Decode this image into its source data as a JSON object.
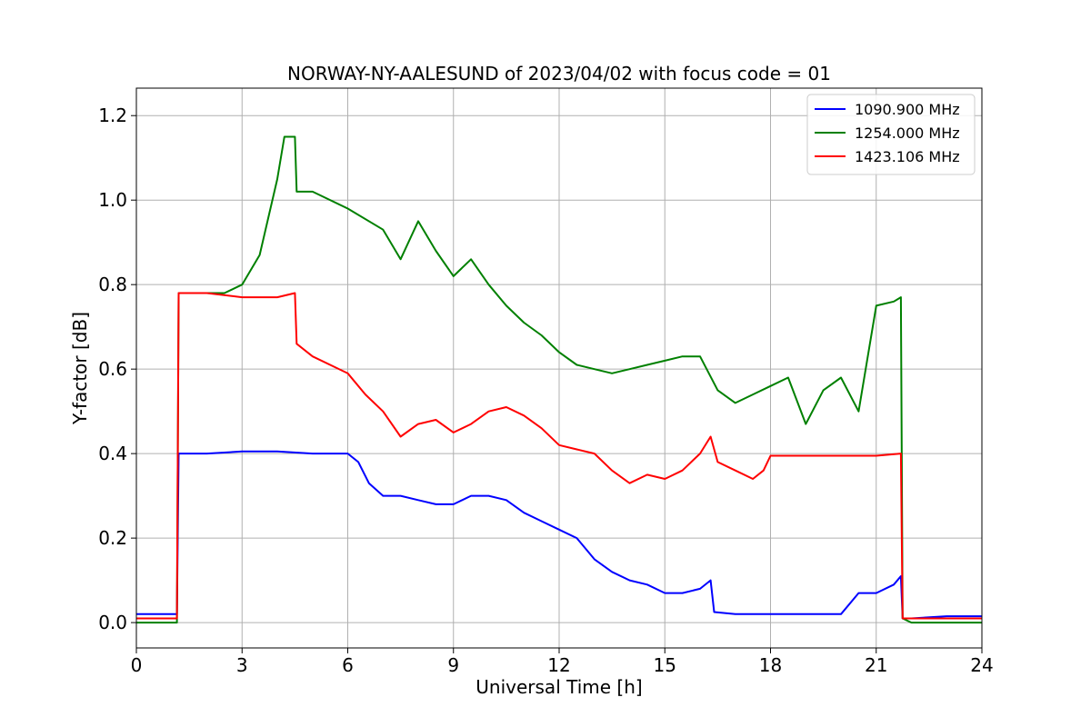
{
  "chart_data": {
    "type": "line",
    "title": "NORWAY-NY-AALESUND of 2023/04/02 with focus code = 01",
    "xlabel": "Universal Time [h]",
    "ylabel": "Y-factor [dB]",
    "xlim": [
      0,
      24
    ],
    "ylim": [
      -0.06,
      1.265
    ],
    "xticks": [
      0,
      3,
      6,
      9,
      12,
      15,
      18,
      21,
      24
    ],
    "yticks": [
      0.0,
      0.2,
      0.4,
      0.6,
      0.8,
      1.0,
      1.2
    ],
    "xtick_labels": [
      "0",
      "3",
      "6",
      "9",
      "12",
      "15",
      "18",
      "21",
      "24"
    ],
    "ytick_labels": [
      "0.0",
      "0.2",
      "0.4",
      "0.6",
      "0.8",
      "1.0",
      "1.2"
    ],
    "grid": true,
    "legend_position": "top-right",
    "series": [
      {
        "name": "1090.900 MHz",
        "color": "#0000ff",
        "x": [
          0,
          1.15,
          1.2,
          2.0,
          3.0,
          4.0,
          5.0,
          6.0,
          6.3,
          6.6,
          7.0,
          7.5,
          8.0,
          8.5,
          9.0,
          9.5,
          10.0,
          10.5,
          11.0,
          11.5,
          12.0,
          12.5,
          13.0,
          13.5,
          14.0,
          14.5,
          15.0,
          15.5,
          16.0,
          16.3,
          16.4,
          17.0,
          18.0,
          19.0,
          20.0,
          20.5,
          21.0,
          21.5,
          21.7,
          21.75,
          22.0,
          23.0,
          24.0
        ],
        "y": [
          0.02,
          0.02,
          0.4,
          0.4,
          0.405,
          0.405,
          0.4,
          0.4,
          0.38,
          0.33,
          0.3,
          0.3,
          0.29,
          0.28,
          0.28,
          0.3,
          0.3,
          0.29,
          0.26,
          0.24,
          0.22,
          0.2,
          0.15,
          0.12,
          0.1,
          0.09,
          0.07,
          0.07,
          0.08,
          0.1,
          0.025,
          0.02,
          0.02,
          0.02,
          0.02,
          0.07,
          0.07,
          0.09,
          0.11,
          0.01,
          0.01,
          0.015,
          0.015
        ]
      },
      {
        "name": "1254.000 MHz",
        "color": "#008000",
        "x": [
          0,
          1.15,
          1.2,
          2.0,
          2.5,
          3.0,
          3.5,
          4.0,
          4.2,
          4.5,
          4.55,
          5.0,
          6.0,
          7.0,
          7.5,
          8.0,
          8.5,
          9.0,
          9.5,
          10.0,
          10.5,
          11.0,
          11.5,
          12.0,
          12.5,
          13.0,
          13.5,
          14.0,
          14.5,
          15.0,
          15.5,
          16.0,
          16.5,
          17.0,
          17.5,
          18.0,
          18.5,
          19.0,
          19.5,
          20.0,
          20.5,
          21.0,
          21.5,
          21.7,
          21.75,
          22.0,
          23.0,
          24.0
        ],
        "y": [
          0.0,
          0.0,
          0.78,
          0.78,
          0.78,
          0.8,
          0.87,
          1.05,
          1.15,
          1.15,
          1.02,
          1.02,
          0.98,
          0.93,
          0.86,
          0.95,
          0.88,
          0.82,
          0.86,
          0.8,
          0.75,
          0.71,
          0.68,
          0.64,
          0.61,
          0.6,
          0.59,
          0.6,
          0.61,
          0.62,
          0.63,
          0.63,
          0.55,
          0.52,
          0.54,
          0.56,
          0.58,
          0.47,
          0.55,
          0.58,
          0.5,
          0.75,
          0.76,
          0.77,
          0.01,
          0.0,
          0.0,
          0.0
        ]
      },
      {
        "name": "1423.106 MHz",
        "color": "#ff0000",
        "x": [
          0,
          1.15,
          1.2,
          2.0,
          3.0,
          4.0,
          4.5,
          4.55,
          5.0,
          6.0,
          6.5,
          7.0,
          7.5,
          8.0,
          8.5,
          9.0,
          9.5,
          10.0,
          10.5,
          11.0,
          11.5,
          12.0,
          12.5,
          13.0,
          13.5,
          14.0,
          14.5,
          15.0,
          15.5,
          16.0,
          16.3,
          16.5,
          17.0,
          17.5,
          17.8,
          18.0,
          19.0,
          20.0,
          21.0,
          21.7,
          21.75,
          22.0,
          23.0,
          24.0
        ],
        "y": [
          0.01,
          0.01,
          0.78,
          0.78,
          0.77,
          0.77,
          0.78,
          0.66,
          0.63,
          0.59,
          0.54,
          0.5,
          0.44,
          0.47,
          0.48,
          0.45,
          0.47,
          0.5,
          0.51,
          0.49,
          0.46,
          0.42,
          0.41,
          0.4,
          0.36,
          0.33,
          0.35,
          0.34,
          0.36,
          0.4,
          0.44,
          0.38,
          0.36,
          0.34,
          0.36,
          0.395,
          0.395,
          0.395,
          0.395,
          0.4,
          0.01,
          0.01,
          0.01,
          0.01
        ]
      }
    ]
  }
}
